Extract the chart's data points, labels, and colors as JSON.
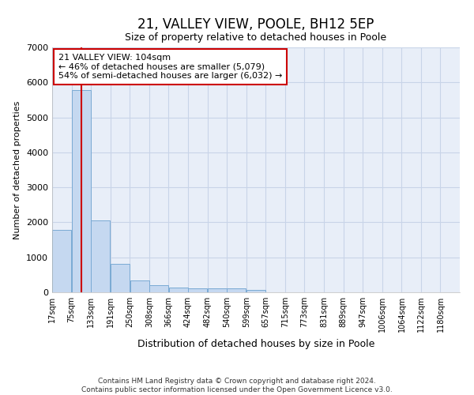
{
  "title": "21, VALLEY VIEW, POOLE, BH12 5EP",
  "subtitle": "Size of property relative to detached houses in Poole",
  "xlabel": "Distribution of detached houses by size in Poole",
  "ylabel": "Number of detached properties",
  "footer_line1": "Contains HM Land Registry data © Crown copyright and database right 2024.",
  "footer_line2": "Contains public sector information licensed under the Open Government Licence v3.0.",
  "bar_left_edges": [
    17,
    75,
    133,
    191,
    250,
    308,
    366,
    424,
    482,
    540,
    599,
    657,
    715,
    773,
    831,
    889,
    947,
    1006,
    1064,
    1122
  ],
  "bar_heights": [
    1790,
    5780,
    2060,
    820,
    340,
    195,
    135,
    115,
    105,
    105,
    70,
    0,
    0,
    0,
    0,
    0,
    0,
    0,
    0,
    0
  ],
  "bin_width": 58,
  "bar_color": "#c5d8f0",
  "bar_edge_color": "#7aaad4",
  "grid_color": "#c8d4e8",
  "background_color": "#e8eef8",
  "annotation_text": "21 VALLEY VIEW: 104sqm\n← 46% of detached houses are smaller (5,079)\n54% of semi-detached houses are larger (6,032) →",
  "annotation_box_color": "#ffffff",
  "annotation_box_edge_color": "#cc0000",
  "vline_x": 104,
  "vline_color": "#cc0000",
  "ylim": [
    0,
    7000
  ],
  "tick_labels": [
    "17sqm",
    "75sqm",
    "133sqm",
    "191sqm",
    "250sqm",
    "308sqm",
    "366sqm",
    "424sqm",
    "482sqm",
    "540sqm",
    "599sqm",
    "657sqm",
    "715sqm",
    "773sqm",
    "831sqm",
    "889sqm",
    "947sqm",
    "1006sqm",
    "1064sqm",
    "1122sqm",
    "1180sqm"
  ],
  "tick_positions": [
    17,
    75,
    133,
    191,
    250,
    308,
    366,
    424,
    482,
    540,
    599,
    657,
    715,
    773,
    831,
    889,
    947,
    1006,
    1064,
    1122,
    1180
  ],
  "title_fontsize": 12,
  "subtitle_fontsize": 9,
  "ylabel_fontsize": 8,
  "xlabel_fontsize": 9,
  "footer_fontsize": 6.5,
  "ytick_fontsize": 8,
  "xtick_fontsize": 7
}
